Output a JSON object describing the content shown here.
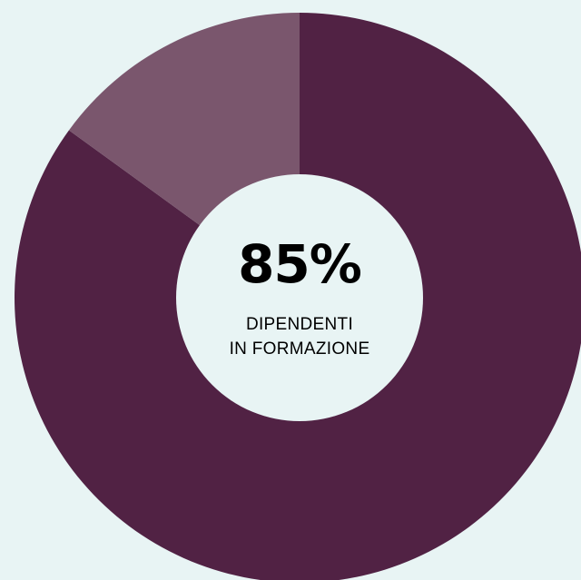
{
  "colors": {
    "background": "#e8f4f4",
    "primary_segment": "#512244",
    "secondary_segment": "#7a566d",
    "hole": "#e8f4f4",
    "text": "#000000"
  },
  "chart_data": {
    "type": "pie",
    "style": "donut",
    "start_angle": "12 o'clock, clockwise",
    "slices": [
      {
        "value": 85,
        "color": "#512244"
      },
      {
        "value": 15,
        "color": "#7a566d"
      }
    ],
    "center_value": "85%",
    "center_caption": [
      "DIPENDENTI",
      "IN FORMAZIONE"
    ]
  }
}
